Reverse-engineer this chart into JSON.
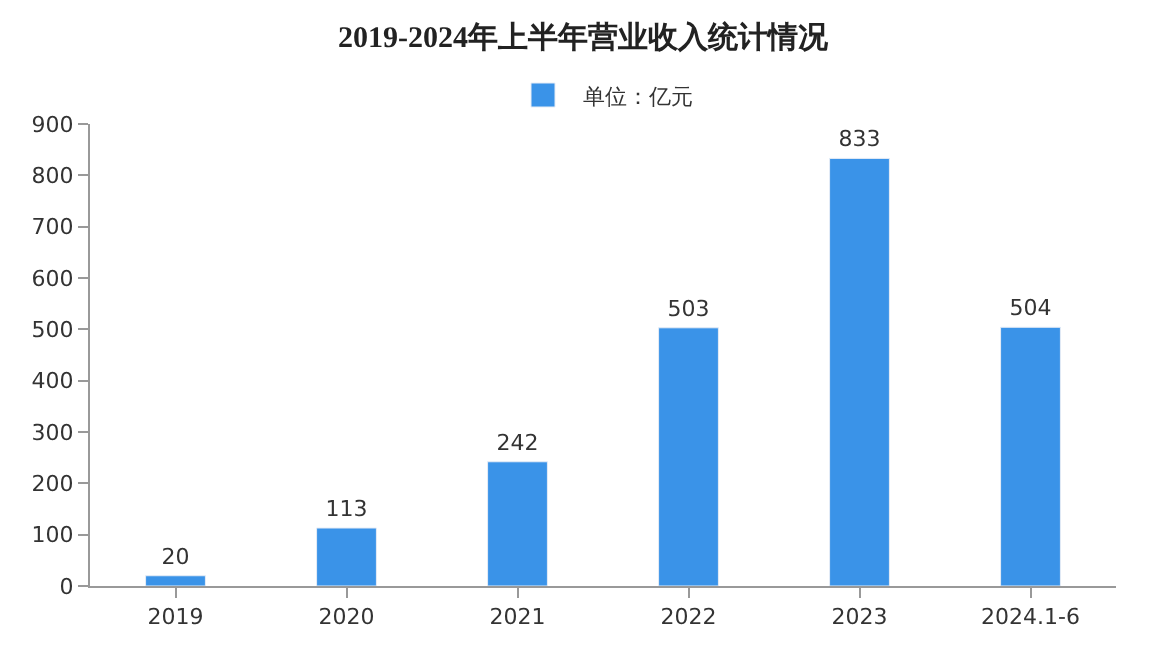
{
  "chart_data": {
    "type": "bar",
    "title": "2019-2024年上半年营业收入统计情况",
    "categories": [
      "2019",
      "2020",
      "2021",
      "2022",
      "2023",
      "2024.1-6"
    ],
    "series": [
      {
        "name": "单位：亿元",
        "color": "#3a93e8",
        "values": [
          20,
          113,
          242,
          503,
          833,
          504
        ]
      }
    ],
    "ylim": [
      0,
      900
    ],
    "yticks": [
      0,
      100,
      200,
      300,
      400,
      500,
      600,
      700,
      800,
      900
    ],
    "legend": "top",
    "data_labels": true
  }
}
